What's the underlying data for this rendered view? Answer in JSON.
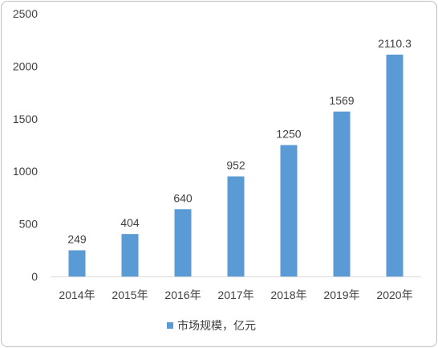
{
  "chart_data": {
    "type": "bar",
    "categories": [
      "2014年",
      "2015年",
      "2016年",
      "2017年",
      "2018年",
      "2019年",
      "2020年"
    ],
    "series": [
      {
        "name": "市场规模，亿元",
        "values": [
          249,
          404,
          640,
          952,
          1250,
          1569,
          2110.3
        ],
        "color": "#5b9bd5"
      }
    ],
    "yticks": [
      0,
      500,
      1000,
      1500,
      2000,
      2500
    ],
    "ylim": [
      0,
      2500
    ],
    "show_data_labels": true,
    "grid": false,
    "legend": "bottom"
  }
}
